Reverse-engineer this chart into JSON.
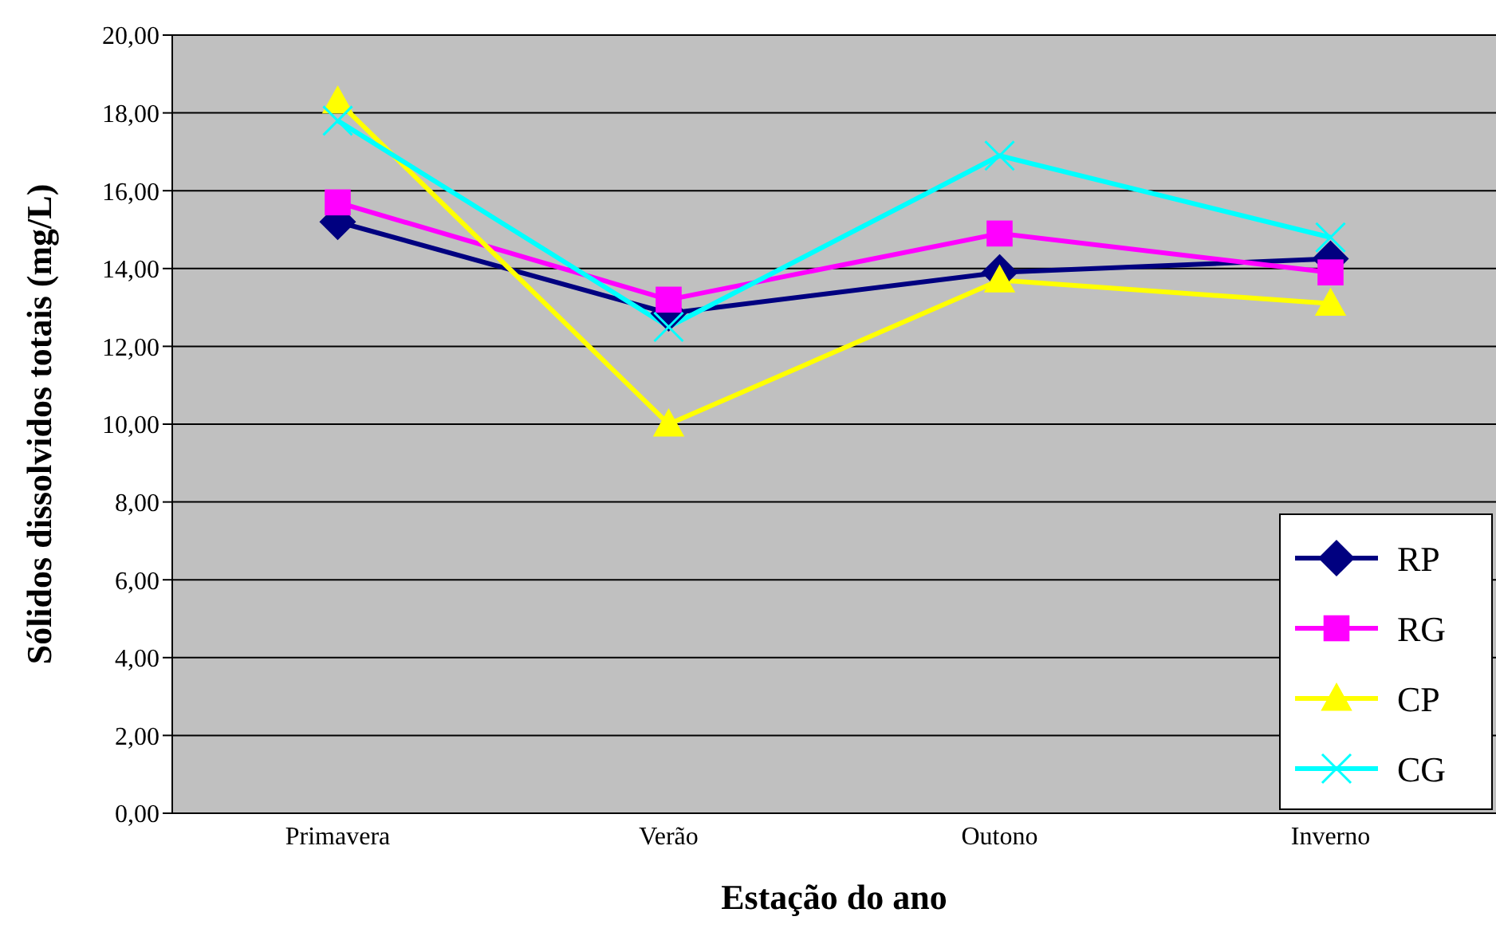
{
  "chart_data": {
    "type": "line",
    "xlabel": "Estação do ano",
    "ylabel": "Sólidos dissolvidos totais (mg/L)",
    "categories": [
      "Primavera",
      "Verão",
      "Outono",
      "Inverno"
    ],
    "series": [
      {
        "name": "RP",
        "color": "#000080",
        "marker": "diamond",
        "values": [
          15.2,
          12.85,
          13.9,
          14.25
        ]
      },
      {
        "name": "RG",
        "color": "#ff00ff",
        "marker": "square",
        "values": [
          15.7,
          13.2,
          14.9,
          13.9
        ]
      },
      {
        "name": "CP",
        "color": "#ffff00",
        "marker": "triangle",
        "values": [
          18.3,
          10.0,
          13.7,
          13.1
        ]
      },
      {
        "name": "CG",
        "color": "#00ffff",
        "marker": "cross",
        "values": [
          17.8,
          12.5,
          16.9,
          14.8
        ]
      }
    ],
    "ylim": [
      0,
      20
    ],
    "yticks": [
      {
        "value": 0,
        "label": "0,00"
      },
      {
        "value": 2,
        "label": "2,00"
      },
      {
        "value": 4,
        "label": "4,00"
      },
      {
        "value": 6,
        "label": "6,00"
      },
      {
        "value": 8,
        "label": "8,00"
      },
      {
        "value": 10,
        "label": "10,00"
      },
      {
        "value": 12,
        "label": "12,00"
      },
      {
        "value": 14,
        "label": "14,00"
      },
      {
        "value": 16,
        "label": "16,00"
      },
      {
        "value": 18,
        "label": "18,00"
      },
      {
        "value": 20,
        "label": "20,00"
      }
    ],
    "grid": "y",
    "legend": "bottom right",
    "line_style": "solid"
  }
}
